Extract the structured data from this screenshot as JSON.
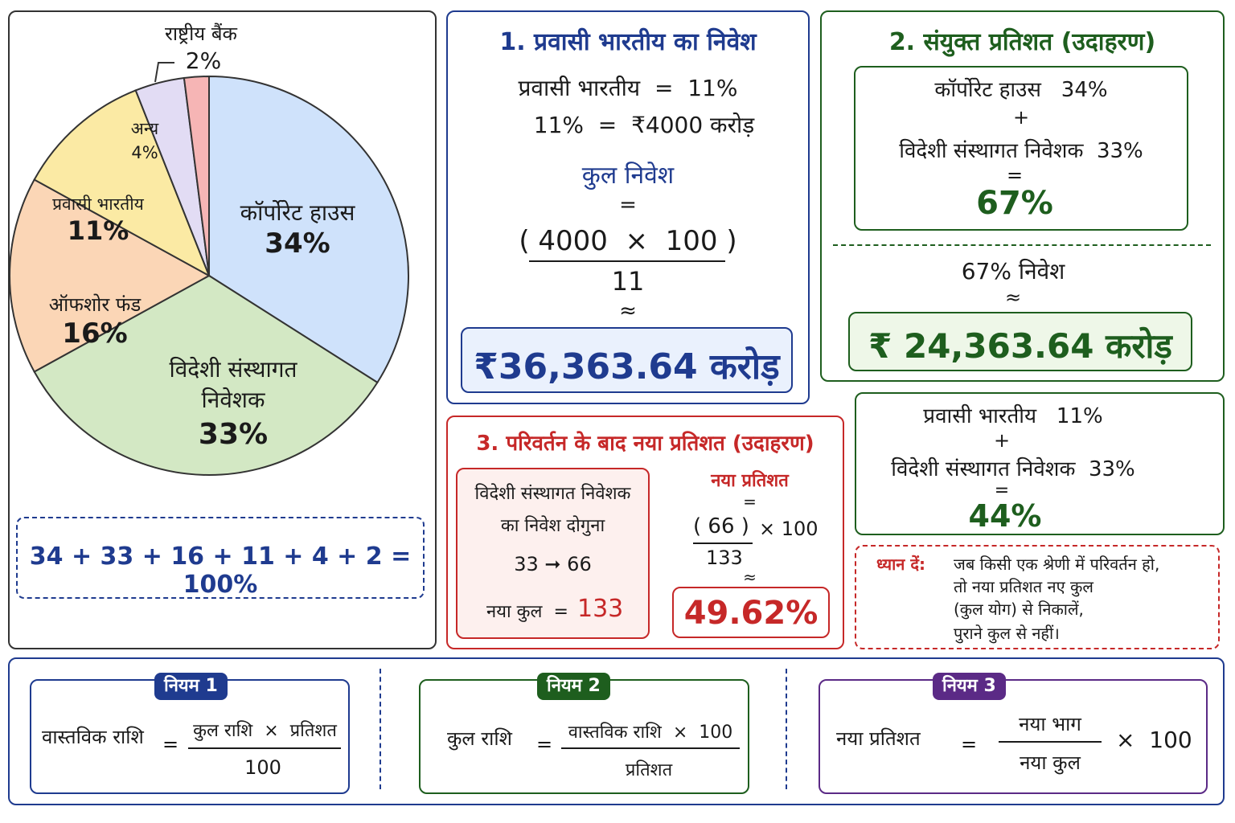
{
  "chart_data": {
    "type": "pie",
    "slices": [
      {
        "label": "कॉर्पोरेट हाउस",
        "value": 34,
        "value_label": "34%",
        "color": "#cfe2fb"
      },
      {
        "label": "विदेशी संस्थागत निवेशक",
        "label_line1": "विदेशी संस्थागत",
        "label_line2": "निवेशक",
        "value": 33,
        "value_label": "33%",
        "color": "#d3e8c4"
      },
      {
        "label": "ऑफशोर फंड",
        "value": 16,
        "value_label": "16%",
        "color": "#fbd6b6"
      },
      {
        "label": "प्रवासी भारतीय",
        "value": 11,
        "value_label": "11%",
        "color": "#fbeaa4"
      },
      {
        "label": "अन्य",
        "value": 4,
        "value_label": "4%",
        "color": "#e2dcf4"
      },
      {
        "label": "राष्ट्रीय बैंक",
        "value": 2,
        "value_label": "2%",
        "color": "#f6b5b5"
      }
    ],
    "sum_text": "34 + 33 + 16 + 11 + 4 + 2 = 100%"
  },
  "box1": {
    "title": "1. प्रवासी भारतीय का निवेश",
    "line1": "प्रवासी भारतीय  =  11%",
    "line2": "11%  =  ₹4000 करोड़",
    "total_label": "कुल निवेश",
    "eq": "=",
    "numerator": "( 4000  ×  100 )",
    "denominator": "11",
    "approx": "≈",
    "result": "₹36,363.64 करोड़"
  },
  "box2": {
    "title": "2. संयुक्त प्रतिशत (उदाहरण)",
    "item1": "कॉर्पोरेट हाउस   34%",
    "plus": "+",
    "item2": "विदेशी संस्थागत निवेशक  33%",
    "eq": "=",
    "sum": "67%",
    "invest_label": "67% निवेश",
    "approx": "≈",
    "result": "₹ 24,363.64 करोड़"
  },
  "box2b": {
    "item1": "प्रवासी भारतीय   11%",
    "plus": "+",
    "item2": "विदेशी संस्थागत निवेशक  33%",
    "eq": "=",
    "sum": "44%"
  },
  "box3": {
    "title": "3. परिवर्तन के बाद नया प्रतिशत (उदाहरण)",
    "inner_line1": "विदेशी संस्थागत निवेशक",
    "inner_line2": "का निवेश दोगुना",
    "change": "33 ➞ 66",
    "new_total_label": "नया कुल  =",
    "new_total_value": "133",
    "new_pct_label": "नया प्रतिशत",
    "eq": "=",
    "numerator": "( 66 )",
    "times": "× 100",
    "denominator": "133",
    "approx": "≈",
    "result": "49.62%"
  },
  "note": {
    "label": "ध्यान दें:",
    "line1": "जब किसी एक श्रेणी में परिवर्तन हो,",
    "line2": "तो नया प्रतिशत नए कुल",
    "line3": "(कुल योग) से निकालें,",
    "line4": "पुराने कुल से नहीं।"
  },
  "rules": [
    {
      "badge": "नियम 1",
      "lhs": "वास्तविक राशि",
      "eq": "=",
      "numerator": "कुल राशि  ×  प्रतिशत",
      "denominator": "100",
      "color": "#1f3b8f"
    },
    {
      "badge": "नियम 2",
      "lhs": "कुल राशि",
      "eq": "=",
      "numerator": "वास्तविक राशि  ×  100",
      "denominator": "प्रतिशत",
      "color": "#1e5e1e"
    },
    {
      "badge": "नियम 3",
      "lhs": "नया प्रतिशत",
      "eq": "=",
      "numerator": "नया भाग",
      "denominator": "नया कुल",
      "times": "×  100",
      "color": "#5b2a86"
    }
  ]
}
